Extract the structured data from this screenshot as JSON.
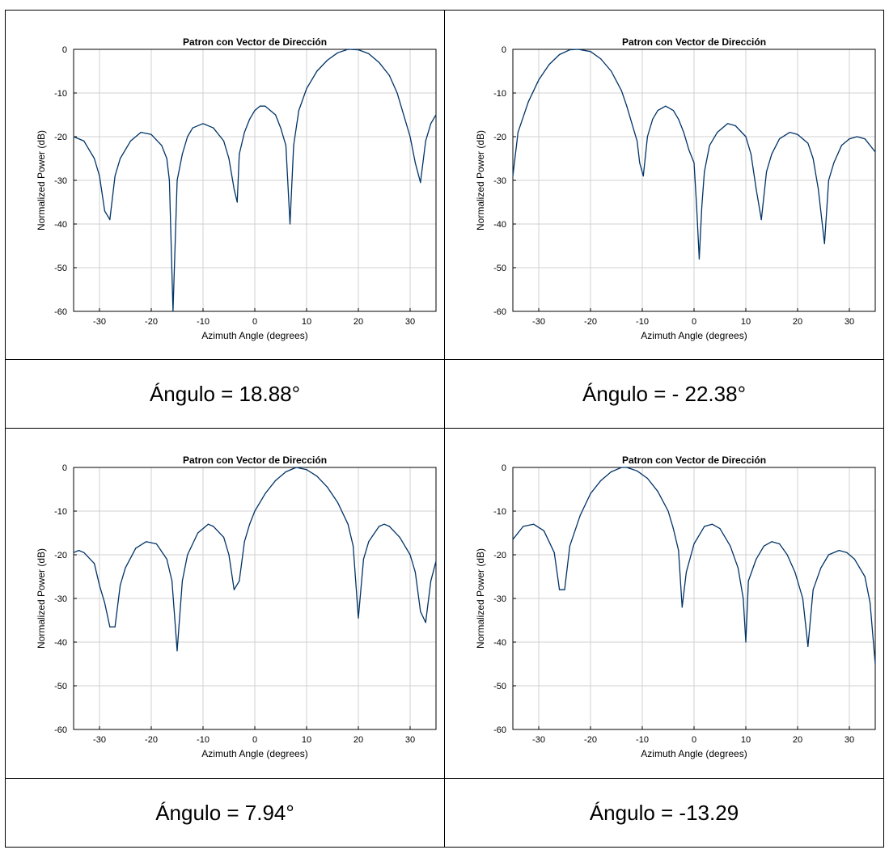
{
  "chart_data": [
    {
      "type": "line",
      "title": "Patron con Vector de Dirección",
      "xlabel": "Azimuth Angle (degrees)",
      "ylabel": "Normalized Power (dB)",
      "xlim": [
        -35,
        35
      ],
      "ylim": [
        -60,
        0
      ],
      "xticks": [
        "-30",
        "-20",
        "-10",
        "0",
        "10",
        "20",
        "30"
      ],
      "yticks": [
        "0",
        "-10",
        "-20",
        "-30",
        "-40",
        "-50",
        "-60"
      ],
      "grid": true,
      "line_color": "#003366",
      "points": [
        [
          -35,
          -20
        ],
        [
          -33,
          -21
        ],
        [
          -31,
          -25
        ],
        [
          -30,
          -29
        ],
        [
          -29,
          -37
        ],
        [
          -28,
          -39
        ],
        [
          -27,
          -29
        ],
        [
          -26,
          -25
        ],
        [
          -24,
          -21
        ],
        [
          -22,
          -19
        ],
        [
          -20,
          -19.5
        ],
        [
          -18,
          -22
        ],
        [
          -17,
          -25
        ],
        [
          -16.5,
          -30
        ],
        [
          -15.8,
          -60
        ],
        [
          -15,
          -30
        ],
        [
          -14,
          -24
        ],
        [
          -13,
          -20
        ],
        [
          -12,
          -18
        ],
        [
          -10,
          -17
        ],
        [
          -8,
          -18
        ],
        [
          -6,
          -21
        ],
        [
          -5,
          -25
        ],
        [
          -4,
          -32
        ],
        [
          -3.4,
          -35
        ],
        [
          -3,
          -24
        ],
        [
          -2,
          -19
        ],
        [
          -1,
          -16
        ],
        [
          0,
          -14
        ],
        [
          1,
          -13
        ],
        [
          2,
          -13
        ],
        [
          3,
          -14
        ],
        [
          4,
          -15
        ],
        [
          5,
          -18
        ],
        [
          6,
          -22
        ],
        [
          6.8,
          -40
        ],
        [
          7.5,
          -22
        ],
        [
          8.5,
          -14
        ],
        [
          10,
          -9
        ],
        [
          12,
          -5
        ],
        [
          14,
          -2.5
        ],
        [
          16,
          -0.8
        ],
        [
          18,
          0
        ],
        [
          20,
          -0.1
        ],
        [
          22,
          -1
        ],
        [
          24,
          -3
        ],
        [
          26,
          -6
        ],
        [
          27.5,
          -10
        ],
        [
          29,
          -16
        ],
        [
          30,
          -20
        ],
        [
          31,
          -26
        ],
        [
          32,
          -30.5
        ],
        [
          33,
          -21
        ],
        [
          34,
          -17
        ],
        [
          35,
          -15
        ]
      ],
      "caption": "Ángulo = 18.88°"
    },
    {
      "type": "line",
      "title": "Patron con Vector de Dirección",
      "xlabel": "Azimuth Angle (degrees)",
      "ylabel": "Normalized Power (dB)",
      "xlim": [
        -35,
        35
      ],
      "ylim": [
        -60,
        0
      ],
      "xticks": [
        "-30",
        "-20",
        "-10",
        "0",
        "10",
        "20",
        "30"
      ],
      "yticks": [
        "0",
        "-10",
        "-20",
        "-30",
        "-40",
        "-50",
        "-60"
      ],
      "grid": true,
      "line_color": "#003366",
      "points": [
        [
          -35,
          -29
        ],
        [
          -34,
          -19
        ],
        [
          -32,
          -12
        ],
        [
          -30,
          -7
        ],
        [
          -28,
          -3.5
        ],
        [
          -26,
          -1.2
        ],
        [
          -24,
          -0.1
        ],
        [
          -22.4,
          0
        ],
        [
          -20,
          -0.5
        ],
        [
          -18,
          -2.2
        ],
        [
          -16,
          -5
        ],
        [
          -14,
          -9.5
        ],
        [
          -13,
          -13
        ],
        [
          -12,
          -17
        ],
        [
          -11,
          -21
        ],
        [
          -10.5,
          -26
        ],
        [
          -9.8,
          -29
        ],
        [
          -9,
          -20
        ],
        [
          -8,
          -16
        ],
        [
          -7,
          -14
        ],
        [
          -5.5,
          -13
        ],
        [
          -4,
          -14
        ],
        [
          -3,
          -16
        ],
        [
          -2,
          -19
        ],
        [
          -1,
          -23
        ],
        [
          0,
          -26
        ],
        [
          0.5,
          -36
        ],
        [
          1,
          -48
        ],
        [
          1.5,
          -36
        ],
        [
          2,
          -28
        ],
        [
          3,
          -22
        ],
        [
          4.5,
          -19
        ],
        [
          6.5,
          -17
        ],
        [
          8,
          -17.5
        ],
        [
          10,
          -20
        ],
        [
          11,
          -24
        ],
        [
          12,
          -32
        ],
        [
          13,
          -39
        ],
        [
          14,
          -28
        ],
        [
          15,
          -24
        ],
        [
          16.5,
          -20.5
        ],
        [
          18.5,
          -19
        ],
        [
          20,
          -19.5
        ],
        [
          22,
          -21.5
        ],
        [
          23,
          -25
        ],
        [
          24,
          -32
        ],
        [
          25.2,
          -44.5
        ],
        [
          26,
          -30
        ],
        [
          27,
          -26
        ],
        [
          28.5,
          -22
        ],
        [
          30,
          -20.5
        ],
        [
          31.5,
          -20
        ],
        [
          33,
          -20.5
        ],
        [
          35,
          -23.5
        ]
      ],
      "caption": "Ángulo = - 22.38°"
    },
    {
      "type": "line",
      "title": "Patron con Vector de Dirección",
      "xlabel": "Azimuth Angle (degrees)",
      "ylabel": "Normalized Power (dB)",
      "xlim": [
        -35,
        35
      ],
      "ylim": [
        -60,
        0
      ],
      "xticks": [
        "-30",
        "-20",
        "-10",
        "0",
        "10",
        "20",
        "30"
      ],
      "yticks": [
        "0",
        "-10",
        "-20",
        "-30",
        "-40",
        "-50",
        "-60"
      ],
      "grid": true,
      "line_color": "#003366",
      "points": [
        [
          -35,
          -19.5
        ],
        [
          -34,
          -19
        ],
        [
          -33,
          -19.5
        ],
        [
          -31,
          -22
        ],
        [
          -30,
          -27
        ],
        [
          -29,
          -31
        ],
        [
          -28,
          -36.5
        ],
        [
          -27,
          -36.5
        ],
        [
          -26,
          -27
        ],
        [
          -25,
          -23
        ],
        [
          -23,
          -18.5
        ],
        [
          -21,
          -17
        ],
        [
          -19,
          -17.5
        ],
        [
          -17,
          -21
        ],
        [
          -16,
          -26
        ],
        [
          -15,
          -42
        ],
        [
          -14,
          -26
        ],
        [
          -13,
          -20
        ],
        [
          -11,
          -15
        ],
        [
          -9,
          -13
        ],
        [
          -8,
          -13.5
        ],
        [
          -6,
          -16
        ],
        [
          -5,
          -20
        ],
        [
          -4,
          -28
        ],
        [
          -3,
          -26
        ],
        [
          -2,
          -17
        ],
        [
          -1,
          -13
        ],
        [
          0,
          -10
        ],
        [
          2,
          -6
        ],
        [
          4,
          -3
        ],
        [
          6,
          -1
        ],
        [
          8,
          0
        ],
        [
          10,
          -0.5
        ],
        [
          12,
          -2
        ],
        [
          14,
          -4.5
        ],
        [
          16,
          -8
        ],
        [
          18,
          -13
        ],
        [
          19,
          -18
        ],
        [
          20,
          -34.5
        ],
        [
          21,
          -21
        ],
        [
          22,
          -17
        ],
        [
          24,
          -13.5
        ],
        [
          25,
          -13
        ],
        [
          26,
          -13.5
        ],
        [
          28,
          -16
        ],
        [
          30,
          -20
        ],
        [
          31,
          -24
        ],
        [
          32,
          -33
        ],
        [
          33,
          -35.5
        ],
        [
          34,
          -26
        ],
        [
          35,
          -21.5
        ]
      ],
      "caption": "Ángulo = 7.94°"
    },
    {
      "type": "line",
      "title": "Patron con Vector de Dirección",
      "xlabel": "Azimuth Angle (degrees)",
      "ylabel": "Normalized Power (dB)",
      "xlim": [
        -35,
        35
      ],
      "ylim": [
        -60,
        0
      ],
      "xticks": [
        "-30",
        "-20",
        "-10",
        "0",
        "10",
        "20",
        "30"
      ],
      "yticks": [
        "0",
        "-10",
        "-20",
        "-30",
        "-40",
        "-50",
        "-60"
      ],
      "grid": true,
      "line_color": "#003366",
      "points": [
        [
          -35,
          -16.5
        ],
        [
          -34,
          -15
        ],
        [
          -33,
          -13.5
        ],
        [
          -31,
          -13
        ],
        [
          -29,
          -14.5
        ],
        [
          -27,
          -19.5
        ],
        [
          -26,
          -28
        ],
        [
          -25,
          -28
        ],
        [
          -24,
          -18
        ],
        [
          -22,
          -11
        ],
        [
          -20,
          -6
        ],
        [
          -18,
          -3
        ],
        [
          -16,
          -1
        ],
        [
          -14,
          0
        ],
        [
          -13,
          0
        ],
        [
          -11,
          -0.8
        ],
        [
          -9,
          -2.5
        ],
        [
          -7,
          -5.5
        ],
        [
          -5,
          -10
        ],
        [
          -4,
          -14
        ],
        [
          -3,
          -19
        ],
        [
          -2.3,
          -32
        ],
        [
          -1.5,
          -24
        ],
        [
          0,
          -17.5
        ],
        [
          2,
          -13.5
        ],
        [
          3.5,
          -13
        ],
        [
          5,
          -14
        ],
        [
          7,
          -18
        ],
        [
          8.5,
          -23
        ],
        [
          9.5,
          -30
        ],
        [
          10,
          -40
        ],
        [
          10.5,
          -26
        ],
        [
          12,
          -21
        ],
        [
          13.5,
          -18
        ],
        [
          15,
          -17
        ],
        [
          16.5,
          -17.5
        ],
        [
          18,
          -20
        ],
        [
          19.5,
          -24
        ],
        [
          21,
          -30
        ],
        [
          22,
          -41
        ],
        [
          23,
          -28
        ],
        [
          24.5,
          -23
        ],
        [
          26,
          -20
        ],
        [
          28,
          -19
        ],
        [
          29.5,
          -19.5
        ],
        [
          31,
          -21
        ],
        [
          33,
          -25
        ],
        [
          34,
          -31
        ],
        [
          35,
          -45
        ]
      ],
      "caption": "Ángulo = -13.29"
    }
  ]
}
